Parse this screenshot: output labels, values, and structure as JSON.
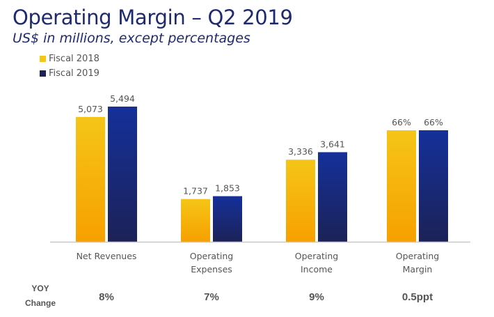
{
  "header": {
    "title": "Operating Margin – Q2 2019",
    "subtitle": "US$ in millions, except percentages"
  },
  "colors": {
    "fiscal_2018_top": "#f5c518",
    "fiscal_2018_bottom": "#f7a000",
    "fiscal_2019_top": "#15309a",
    "fiscal_2019_bottom": "#1c2257",
    "axis": "#c8c8c8",
    "label_text": "#555555"
  },
  "yoy": {
    "label_line1": "YOY",
    "label_line2": "Change"
  },
  "chart_data": {
    "type": "bar",
    "title": "Operating Margin – Q2 2019",
    "subtitle": "US$ in millions, except percentages",
    "xlabel": "",
    "ylabel": "",
    "grid": false,
    "legend_position": "top-left",
    "categories": [
      "Net Revenues",
      "Operating Expenses",
      "Operating Income",
      "Operating Margin"
    ],
    "category_labels": [
      [
        "Net Revenues"
      ],
      [
        "Operating",
        "Expenses"
      ],
      [
        "Operating",
        "Income"
      ],
      [
        "Operating",
        "Margin"
      ]
    ],
    "series": [
      {
        "name": "Fiscal 2018",
        "values": [
          5073,
          1737,
          3336,
          66
        ],
        "labels": [
          "5,073",
          "1,737",
          "3,336",
          "66%"
        ]
      },
      {
        "name": "Fiscal 2019",
        "values": [
          5494,
          1853,
          3641,
          66
        ],
        "labels": [
          "5,494",
          "1,853",
          "3,641",
          "66%"
        ]
      }
    ],
    "units": [
      "US$ millions",
      "US$ millions",
      "US$ millions",
      "percent"
    ],
    "ylim_millions": [
      0,
      5494
    ],
    "ylim_percent": [
      0,
      66
    ],
    "yoy_change": [
      "8%",
      "7%",
      "9%",
      "0.5ppt"
    ]
  }
}
